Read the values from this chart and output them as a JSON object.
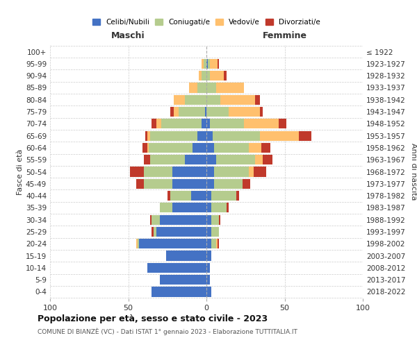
{
  "age_groups": [
    "0-4",
    "5-9",
    "10-14",
    "15-19",
    "20-24",
    "25-29",
    "30-34",
    "35-39",
    "40-44",
    "45-49",
    "50-54",
    "55-59",
    "60-64",
    "65-69",
    "70-74",
    "75-79",
    "80-84",
    "85-89",
    "90-94",
    "95-99",
    "100+"
  ],
  "birth_years": [
    "2018-2022",
    "2013-2017",
    "2008-2012",
    "2003-2007",
    "1998-2002",
    "1993-1997",
    "1988-1992",
    "1983-1987",
    "1978-1982",
    "1973-1977",
    "1968-1972",
    "1963-1967",
    "1958-1962",
    "1953-1957",
    "1948-1952",
    "1943-1947",
    "1938-1942",
    "1933-1937",
    "1928-1932",
    "1923-1927",
    "≤ 1922"
  ],
  "maschi": {
    "celibi": [
      35,
      30,
      38,
      26,
      43,
      32,
      30,
      22,
      10,
      22,
      22,
      14,
      9,
      6,
      3,
      1,
      0,
      0,
      0,
      0,
      0
    ],
    "coniugati": [
      0,
      0,
      0,
      0,
      1,
      2,
      5,
      8,
      13,
      18,
      18,
      22,
      28,
      30,
      26,
      17,
      14,
      6,
      3,
      2,
      0
    ],
    "vedovi": [
      0,
      0,
      0,
      0,
      1,
      0,
      0,
      0,
      0,
      0,
      0,
      0,
      1,
      2,
      3,
      3,
      7,
      5,
      2,
      1,
      0
    ],
    "divorziati": [
      0,
      0,
      0,
      0,
      0,
      1,
      1,
      0,
      2,
      5,
      9,
      4,
      3,
      1,
      3,
      2,
      0,
      0,
      0,
      0,
      0
    ]
  },
  "femmine": {
    "nubili": [
      3,
      2,
      2,
      3,
      3,
      3,
      3,
      3,
      3,
      5,
      5,
      6,
      5,
      4,
      2,
      0,
      0,
      0,
      0,
      1,
      0
    ],
    "coniugate": [
      0,
      0,
      0,
      0,
      3,
      5,
      5,
      10,
      16,
      18,
      22,
      25,
      22,
      30,
      22,
      14,
      9,
      6,
      2,
      1,
      0
    ],
    "vedove": [
      0,
      0,
      0,
      0,
      1,
      0,
      0,
      0,
      0,
      0,
      3,
      5,
      8,
      25,
      22,
      20,
      22,
      18,
      9,
      5,
      0
    ],
    "divorziate": [
      0,
      0,
      0,
      0,
      1,
      0,
      1,
      1,
      2,
      5,
      8,
      6,
      6,
      8,
      5,
      2,
      3,
      0,
      2,
      1,
      0
    ]
  },
  "colors": {
    "celibi": "#4472c4",
    "coniugati": "#b5cc8e",
    "vedovi": "#ffc06e",
    "divorziati": "#c0392b"
  },
  "xlim": 100,
  "title": "Popolazione per età, sesso e stato civile - 2023",
  "subtitle": "COMUNE DI BIANZÈ (VC) - Dati ISTAT 1° gennaio 2023 - Elaborazione TUTTITALIA.IT",
  "ylabel_left": "Fasce di età",
  "ylabel_right": "Anni di nascita",
  "xlabel_left": "Maschi",
  "xlabel_right": "Femmine",
  "bg_color": "#ffffff"
}
